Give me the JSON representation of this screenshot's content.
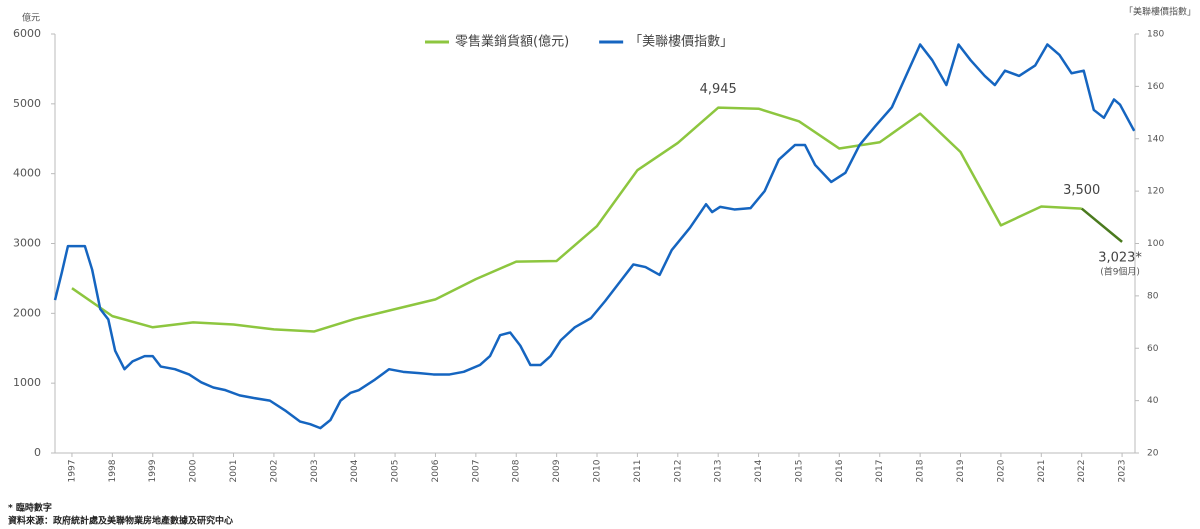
{
  "chart_data": {
    "type": "line",
    "y_label": "億元",
    "y2_label": "「美聯樓價指數」",
    "legend": "top",
    "grid": false,
    "xlim": [
      1996.58,
      2023.32
    ],
    "xticks": [
      1997,
      1998,
      1999,
      2000,
      2001,
      2002,
      2003,
      2004,
      2005,
      2006,
      2007,
      2008,
      2009,
      2010,
      2011,
      2012,
      2013,
      2014,
      2015,
      2016,
      2017,
      2018,
      2019,
      2020,
      2021,
      2022,
      2023
    ],
    "ylim": [
      0,
      6000
    ],
    "yticks": [
      0,
      1000,
      2000,
      3000,
      4000,
      5000,
      6000
    ],
    "y2lim": [
      20,
      180
    ],
    "y2ticks": [
      20,
      40,
      60,
      80,
      100,
      120,
      140,
      160,
      180
    ],
    "series": [
      {
        "name": "零售業銷貨額(億元)",
        "color": "#8dc63f",
        "last_segment_color": "#4a7a1e",
        "axis": "y",
        "x": [
          1997,
          1998,
          1999,
          2000,
          2001,
          2002,
          2003,
          2004,
          2005,
          2006,
          2007,
          2008,
          2009,
          2010,
          2011,
          2012,
          2013,
          2014,
          2015,
          2016,
          2017,
          2018,
          2019,
          2020,
          2021,
          2022,
          2023
        ],
        "values": [
          2360,
          1960,
          1800,
          1870,
          1840,
          1770,
          1740,
          1920,
          2060,
          2200,
          2490,
          2740,
          2750,
          3250,
          4050,
          4440,
          4945,
          4930,
          4750,
          4360,
          4450,
          4860,
          4310,
          3260,
          3530,
          3500,
          3023
        ],
        "value_labels": [
          null,
          null,
          null,
          null,
          null,
          null,
          null,
          null,
          null,
          null,
          null,
          null,
          null,
          null,
          null,
          null,
          "4,945",
          null,
          null,
          null,
          null,
          null,
          null,
          null,
          null,
          "3,500",
          "3,023*"
        ]
      },
      {
        "name": "「美聯樓價指數」",
        "color": "#1565c0",
        "axis": "y2",
        "x": [
          1996.58,
          1996.75,
          1996.9,
          1997.08,
          1997.32,
          1997.5,
          1997.7,
          1997.9,
          1998.07,
          1998.3,
          1998.5,
          1998.8,
          1999,
          1999.2,
          1999.55,
          1999.9,
          2000.2,
          2000.5,
          2000.8,
          2001.15,
          2001.5,
          2001.9,
          2002.3,
          2002.65,
          2002.9,
          2003.15,
          2003.4,
          2003.65,
          2003.9,
          2004.1,
          2004.5,
          2004.85,
          2005.2,
          2005.6,
          2005.95,
          2006.35,
          2006.7,
          2007.1,
          2007.35,
          2007.6,
          2007.85,
          2008.1,
          2008.35,
          2008.6,
          2008.85,
          2009.1,
          2009.45,
          2009.85,
          2010.2,
          2010.6,
          2010.9,
          2011.2,
          2011.55,
          2011.85,
          2012.3,
          2012.7,
          2012.85,
          2013.05,
          2013.4,
          2013.8,
          2014.15,
          2014.5,
          2014.9,
          2015.15,
          2015.4,
          2015.8,
          2016.15,
          2016.5,
          2016.9,
          2017.3,
          2017.65,
          2018,
          2018.3,
          2018.65,
          2018.95,
          2019.25,
          2019.6,
          2019.85,
          2020.1,
          2020.45,
          2020.85,
          2021.15,
          2021.45,
          2021.75,
          2022.05,
          2022.3,
          2022.55,
          2022.8,
          2022.95,
          2023.3
        ],
        "values": [
          78.4,
          89,
          99,
          99,
          99,
          90,
          75,
          71,
          59,
          52,
          55,
          57,
          57,
          53,
          52,
          50,
          47,
          45,
          44,
          42,
          41,
          40,
          36,
          32,
          31,
          29.5,
          32.6,
          40,
          43,
          44,
          48,
          52,
          51,
          50.5,
          50,
          50,
          51,
          53.6,
          57,
          65,
          66,
          61,
          53.6,
          53.6,
          57,
          63,
          68,
          71.5,
          78,
          86,
          92,
          91,
          88,
          97.5,
          106,
          115,
          112,
          114,
          113,
          113.5,
          120,
          132,
          137.6,
          137.6,
          130,
          123.5,
          127,
          137.6,
          145,
          152,
          164,
          176,
          170,
          160.5,
          176,
          170,
          164,
          160.5,
          166,
          164,
          168,
          176,
          172,
          165,
          166,
          151,
          148,
          155,
          153,
          143
        ]
      }
    ],
    "annotations": [
      "(首9個月)"
    ],
    "footnotes": [
      "* 臨時數字",
      "資料來源：政府統計處及美聯物業房地產數據及研究中心"
    ]
  }
}
